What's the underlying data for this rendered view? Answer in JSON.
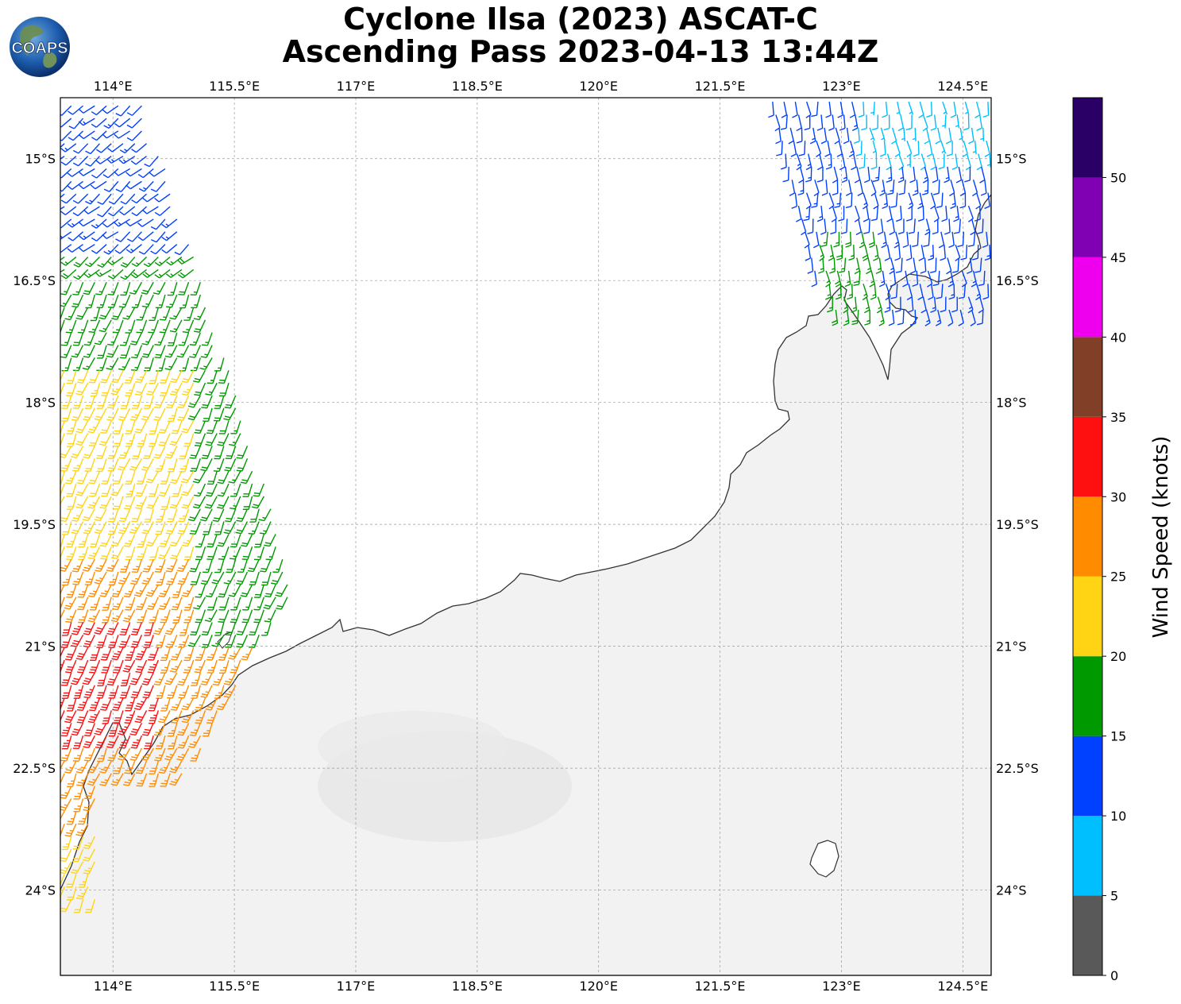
{
  "header": {
    "title_line1": "Cyclone Ilsa (2023) ASCAT-C",
    "title_line2": "Ascending Pass 2023-04-13 13:44Z"
  },
  "logo": {
    "text": "COAPS"
  },
  "map": {
    "lon_range": [
      113.35,
      124.85
    ],
    "lat_range": [
      -25.05,
      -14.25
    ],
    "lon_ticks": [
      "114°E",
      "115.5°E",
      "117°E",
      "118.5°E",
      "120°E",
      "121.5°E",
      "123°E",
      "124.5°E"
    ],
    "lon_tick_values": [
      114,
      115.5,
      117,
      118.5,
      120,
      121.5,
      123,
      124.5
    ],
    "lat_ticks": [
      "15°S",
      "16.5°S",
      "18°S",
      "19.5°S",
      "21°S",
      "22.5°S",
      "24°S"
    ],
    "lat_tick_values": [
      -15,
      -16.5,
      -18,
      -19.5,
      -21,
      -22.5,
      -24
    ],
    "gridlines": true,
    "land_color": "#f2f2f2",
    "coast_color": "#333333"
  },
  "colorbar": {
    "label": "Wind Speed (knots)",
    "tick_labels": [
      "0",
      "5",
      "10",
      "15",
      "20",
      "25",
      "30",
      "35",
      "40",
      "45",
      "50"
    ],
    "bins": [
      {
        "from": 0,
        "to": 5,
        "color": "#595959"
      },
      {
        "from": 5,
        "to": 10,
        "color": "#00bfff"
      },
      {
        "from": 10,
        "to": 15,
        "color": "#0040ff"
      },
      {
        "from": 15,
        "to": 20,
        "color": "#009900"
      },
      {
        "from": 20,
        "to": 25,
        "color": "#ffd414"
      },
      {
        "from": 25,
        "to": 30,
        "color": "#ff8c00"
      },
      {
        "from": 30,
        "to": 35,
        "color": "#ff1010"
      },
      {
        "from": 35,
        "to": 40,
        "color": "#803f26"
      },
      {
        "from": 40,
        "to": 45,
        "color": "#ee00ee"
      },
      {
        "from": 45,
        "to": 50,
        "color": "#8000b3"
      },
      {
        "from": 50,
        "to": 55,
        "color": "#2b0066"
      }
    ]
  },
  "wind_swaths": [
    {
      "name": "west",
      "region": "western ascending swath",
      "speed_range_knots": [
        10,
        35
      ]
    },
    {
      "name": "northeast",
      "region": "north-eastern ascending swath",
      "speed_range_knots": [
        5,
        20
      ]
    }
  ]
}
